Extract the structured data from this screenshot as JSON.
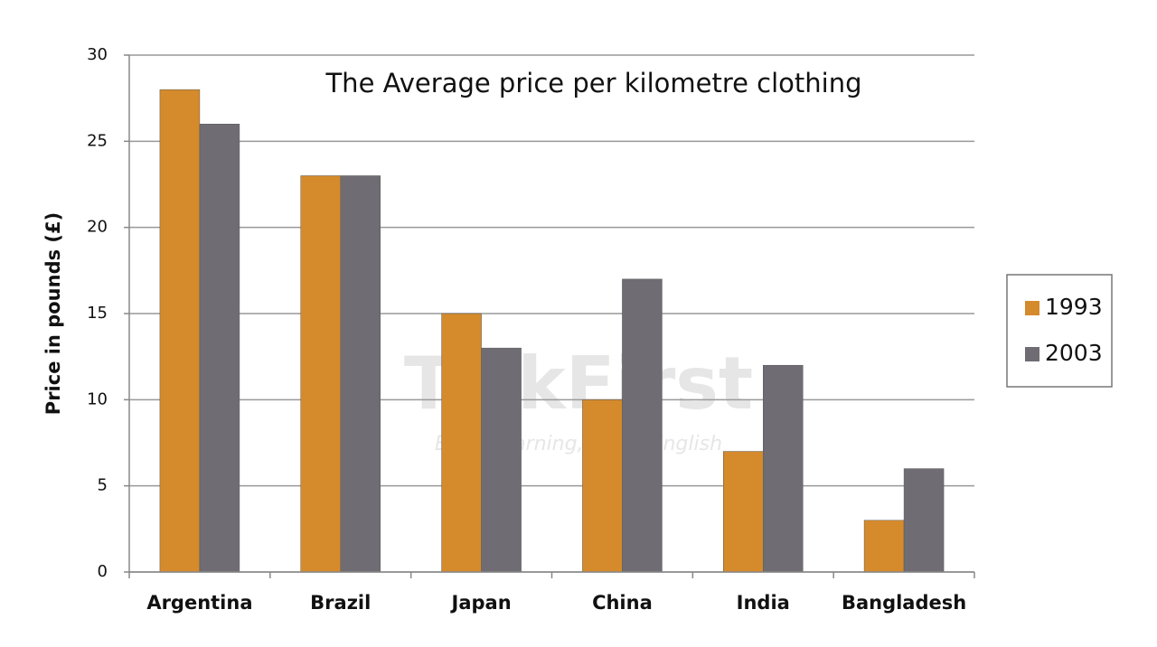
{
  "chart_data": {
    "type": "bar",
    "title": "The Average price per kilometre clothing",
    "y_label": "Price in pounds (£)",
    "watermark": "TalkFirst",
    "watermark_tagline": "Enjoy learning, enjoy English",
    "categories": [
      "Argentina",
      "Brazil",
      "Japan",
      "China",
      "India",
      "Bangladesh"
    ],
    "series": [
      {
        "name": "1993",
        "color": "#d58a2b",
        "values": [
          28,
          23,
          15,
          10,
          7,
          3
        ]
      },
      {
        "name": "2003",
        "color": "#6f6c73",
        "values": [
          26,
          23,
          13,
          17,
          12,
          6
        ]
      }
    ],
    "ylim": [
      0,
      30
    ],
    "yticks": [
      0,
      5,
      10,
      15,
      20,
      25,
      30
    ],
    "grid": true,
    "legend": "right"
  }
}
